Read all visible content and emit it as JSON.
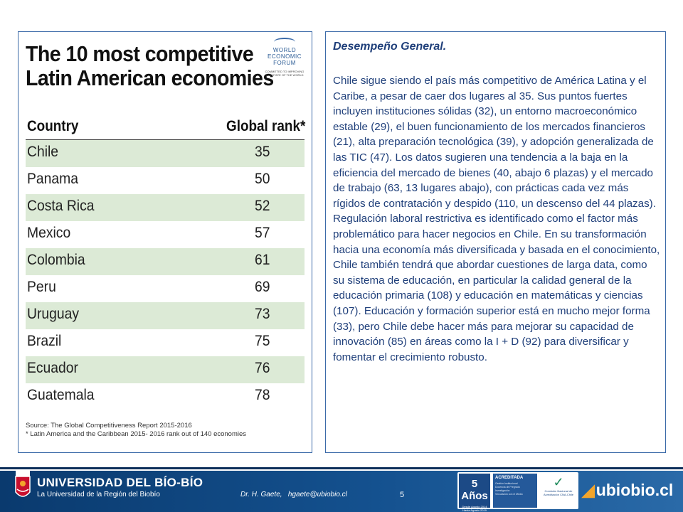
{
  "wef": {
    "title_line1": "The 10 most competitive",
    "title_line2": "Latin American economies",
    "logo_line1": "WORLD",
    "logo_line2": "ECONOMIC",
    "logo_line3": "FORUM",
    "logo_tagline": "COMMITTED TO IMPROVING THE STATE OF THE WORLD",
    "col_country": "Country",
    "col_rank": "Global rank*",
    "rows": [
      {
        "country": "Chile",
        "rank": "35"
      },
      {
        "country": "Panama",
        "rank": "50"
      },
      {
        "country": "Costa Rica",
        "rank": "52"
      },
      {
        "country": "Mexico",
        "rank": "57"
      },
      {
        "country": "Colombia",
        "rank": "61"
      },
      {
        "country": "Peru",
        "rank": "69"
      },
      {
        "country": "Uruguay",
        "rank": "73"
      },
      {
        "country": "Brazil",
        "rank": "75"
      },
      {
        "country": "Ecuador",
        "rank": "76"
      },
      {
        "country": "Guatemala",
        "rank": "78"
      }
    ],
    "source_line1": "Source: The Global Competitiveness Report 2015-2016",
    "source_line2": "* Latin America and the Caribbean 2015- 2016 rank out of 140 economies"
  },
  "text_panel": {
    "heading": "Desempeño General.",
    "body": "Chile sigue siendo el país más competitivo de América Latina y el Caribe, a pesar de caer dos lugares al 35. Sus puntos fuertes incluyen instituciones sólidas (32), un entorno macroeconómico estable (29), el buen funcionamiento de los mercados financieros (21), alta preparación tecnológica (39), y adopción generalizada de las TIC (47). Los datos sugieren una tendencia a la baja en la eficiencia del mercado de bienes (40, abajo 6 plazas) y el mercado de trabajo (63, 13 lugares abajo), con prácticas cada vez más rígidos de contratación y despido (110, un descenso del 44 plazas). Regulación laboral restrictiva es identificado como el factor más problemático para hacer negocios en Chile. En su transformación hacia una economía más diversificada y basada en el conocimiento, Chile también tendrá que abordar cuestiones de larga data, como su sistema de educación, en particular la calidad general de la educación primaria (108) y educación en matemáticas y ciencias (107). Educación y formación superior está en mucho mejor forma (33), pero Chile debe hacer más para mejorar su capacidad de innovación (85) en áreas como la I + D (92) para diversificar y fomentar el crecimiento robusto."
  },
  "footer": {
    "university": "UNIVERSIDAD DEL BÍO-BÍO",
    "university_sub": "La Universidad de la Región del Biobío",
    "author_name": "Dr. H. Gaete,",
    "author_email": "hgaete@ubiobio.cl",
    "page_number": "5",
    "accred_years": "5 Años",
    "accred_period": "Desde Agosto 2014 Hasta Agosto 2019",
    "accred_label": "ACREDITADA",
    "accred_areas": [
      "Gestión Institucional",
      "Docencia de Pregrado",
      "Investigación",
      "Vinculación con el Medio"
    ],
    "cna_text": "Comisión Nacional de Acreditación CNA-Chile",
    "site_logo": "ubiobio.cl"
  },
  "colors": {
    "text_blue": "#1f3f7a",
    "panel_border": "#3b6aa8",
    "footer_blue": "#14518f",
    "row_green": "#dcead6",
    "accent_orange": "#f3a52b"
  }
}
